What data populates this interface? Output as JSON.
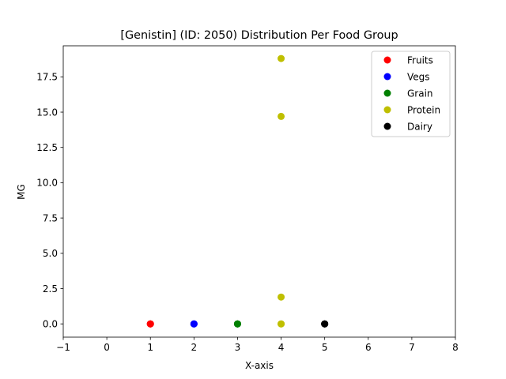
{
  "chart_data": {
    "type": "scatter",
    "title": "[Genistin] (ID: 2050) Distribution Per Food Group",
    "xlabel": "X-axis",
    "ylabel": "MG",
    "xlim": [
      -1,
      8
    ],
    "ylim": [
      -0.94,
      19.7
    ],
    "xticks": [
      -1,
      0,
      1,
      2,
      3,
      4,
      5,
      6,
      7,
      8
    ],
    "xtick_labels": [
      "−1",
      "0",
      "1",
      "2",
      "3",
      "4",
      "5",
      "6",
      "7",
      "8"
    ],
    "yticks": [
      0.0,
      2.5,
      5.0,
      7.5,
      10.0,
      12.5,
      15.0,
      17.5
    ],
    "ytick_labels": [
      "0.0",
      "2.5",
      "5.0",
      "7.5",
      "10.0",
      "12.5",
      "15.0",
      "17.5"
    ],
    "grid": false,
    "legend_position": "top-right",
    "series": [
      {
        "name": "Fruits",
        "color": "#ff0000",
        "x": [
          1,
          1,
          1
        ],
        "y": [
          0,
          0,
          0
        ]
      },
      {
        "name": "Vegs",
        "color": "#0000ff",
        "x": [
          2,
          2,
          2
        ],
        "y": [
          0,
          0,
          0
        ]
      },
      {
        "name": "Grain",
        "color": "#008000",
        "x": [
          3,
          3,
          3
        ],
        "y": [
          0,
          0,
          0
        ]
      },
      {
        "name": "Protein",
        "color": "#bfbf00",
        "x": [
          4,
          4,
          4,
          4,
          4
        ],
        "y": [
          18.8,
          14.7,
          1.9,
          0,
          0
        ]
      },
      {
        "name": "Dairy",
        "color": "#000000",
        "x": [
          5,
          5,
          5
        ],
        "y": [
          0,
          0,
          0
        ]
      }
    ]
  }
}
